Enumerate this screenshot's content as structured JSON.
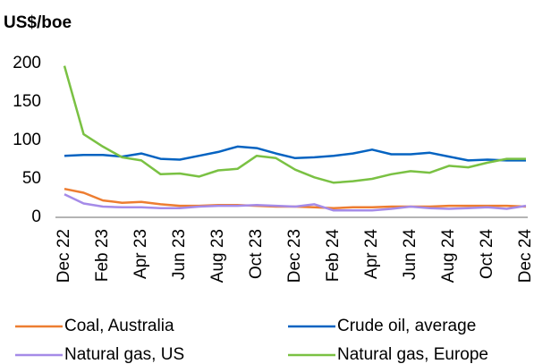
{
  "chart_data": {
    "type": "line",
    "y_axis_label": "US$/boe",
    "categories": [
      "Dec 22",
      null,
      "Feb 23",
      null,
      "Apr 23",
      null,
      "Jun 23",
      null,
      "Aug 23",
      null,
      "Oct 23",
      null,
      "Dec 23",
      null,
      "Feb 24",
      null,
      "Apr 24",
      null,
      "Jun 24",
      null,
      "Aug 24",
      null,
      "Oct 24",
      null,
      "Dec 24"
    ],
    "series": [
      {
        "name": "Coal, Australia",
        "color": "#ed7d31",
        "values": [
          37,
          32,
          22,
          19,
          20,
          17,
          15,
          15,
          16,
          16,
          15,
          14,
          14,
          13,
          12,
          13,
          13,
          14,
          14,
          14,
          15,
          15,
          15,
          15,
          14
        ]
      },
      {
        "name": "Crude oil, average",
        "color": "#0563c1",
        "values": [
          80,
          81,
          81,
          79,
          83,
          76,
          75,
          80,
          85,
          92,
          90,
          83,
          77,
          78,
          80,
          83,
          88,
          82,
          82,
          84,
          79,
          74,
          75,
          74,
          74
        ]
      },
      {
        "name": "Natural gas, US",
        "color": "#a58be8",
        "values": [
          30,
          18,
          14,
          13,
          13,
          12,
          12,
          14,
          15,
          15,
          16,
          15,
          14,
          17,
          9,
          9,
          9,
          11,
          14,
          12,
          11,
          12,
          13,
          11,
          15
        ]
      },
      {
        "name": "Natural gas, Europe",
        "color": "#7ac143",
        "values": [
          197,
          108,
          92,
          78,
          74,
          56,
          57,
          53,
          61,
          63,
          80,
          77,
          62,
          52,
          45,
          47,
          50,
          56,
          60,
          58,
          67,
          65,
          71,
          76,
          76
        ]
      }
    ],
    "ylim": [
      0,
      200
    ],
    "yticks": [
      0,
      50,
      100,
      150,
      200
    ]
  }
}
